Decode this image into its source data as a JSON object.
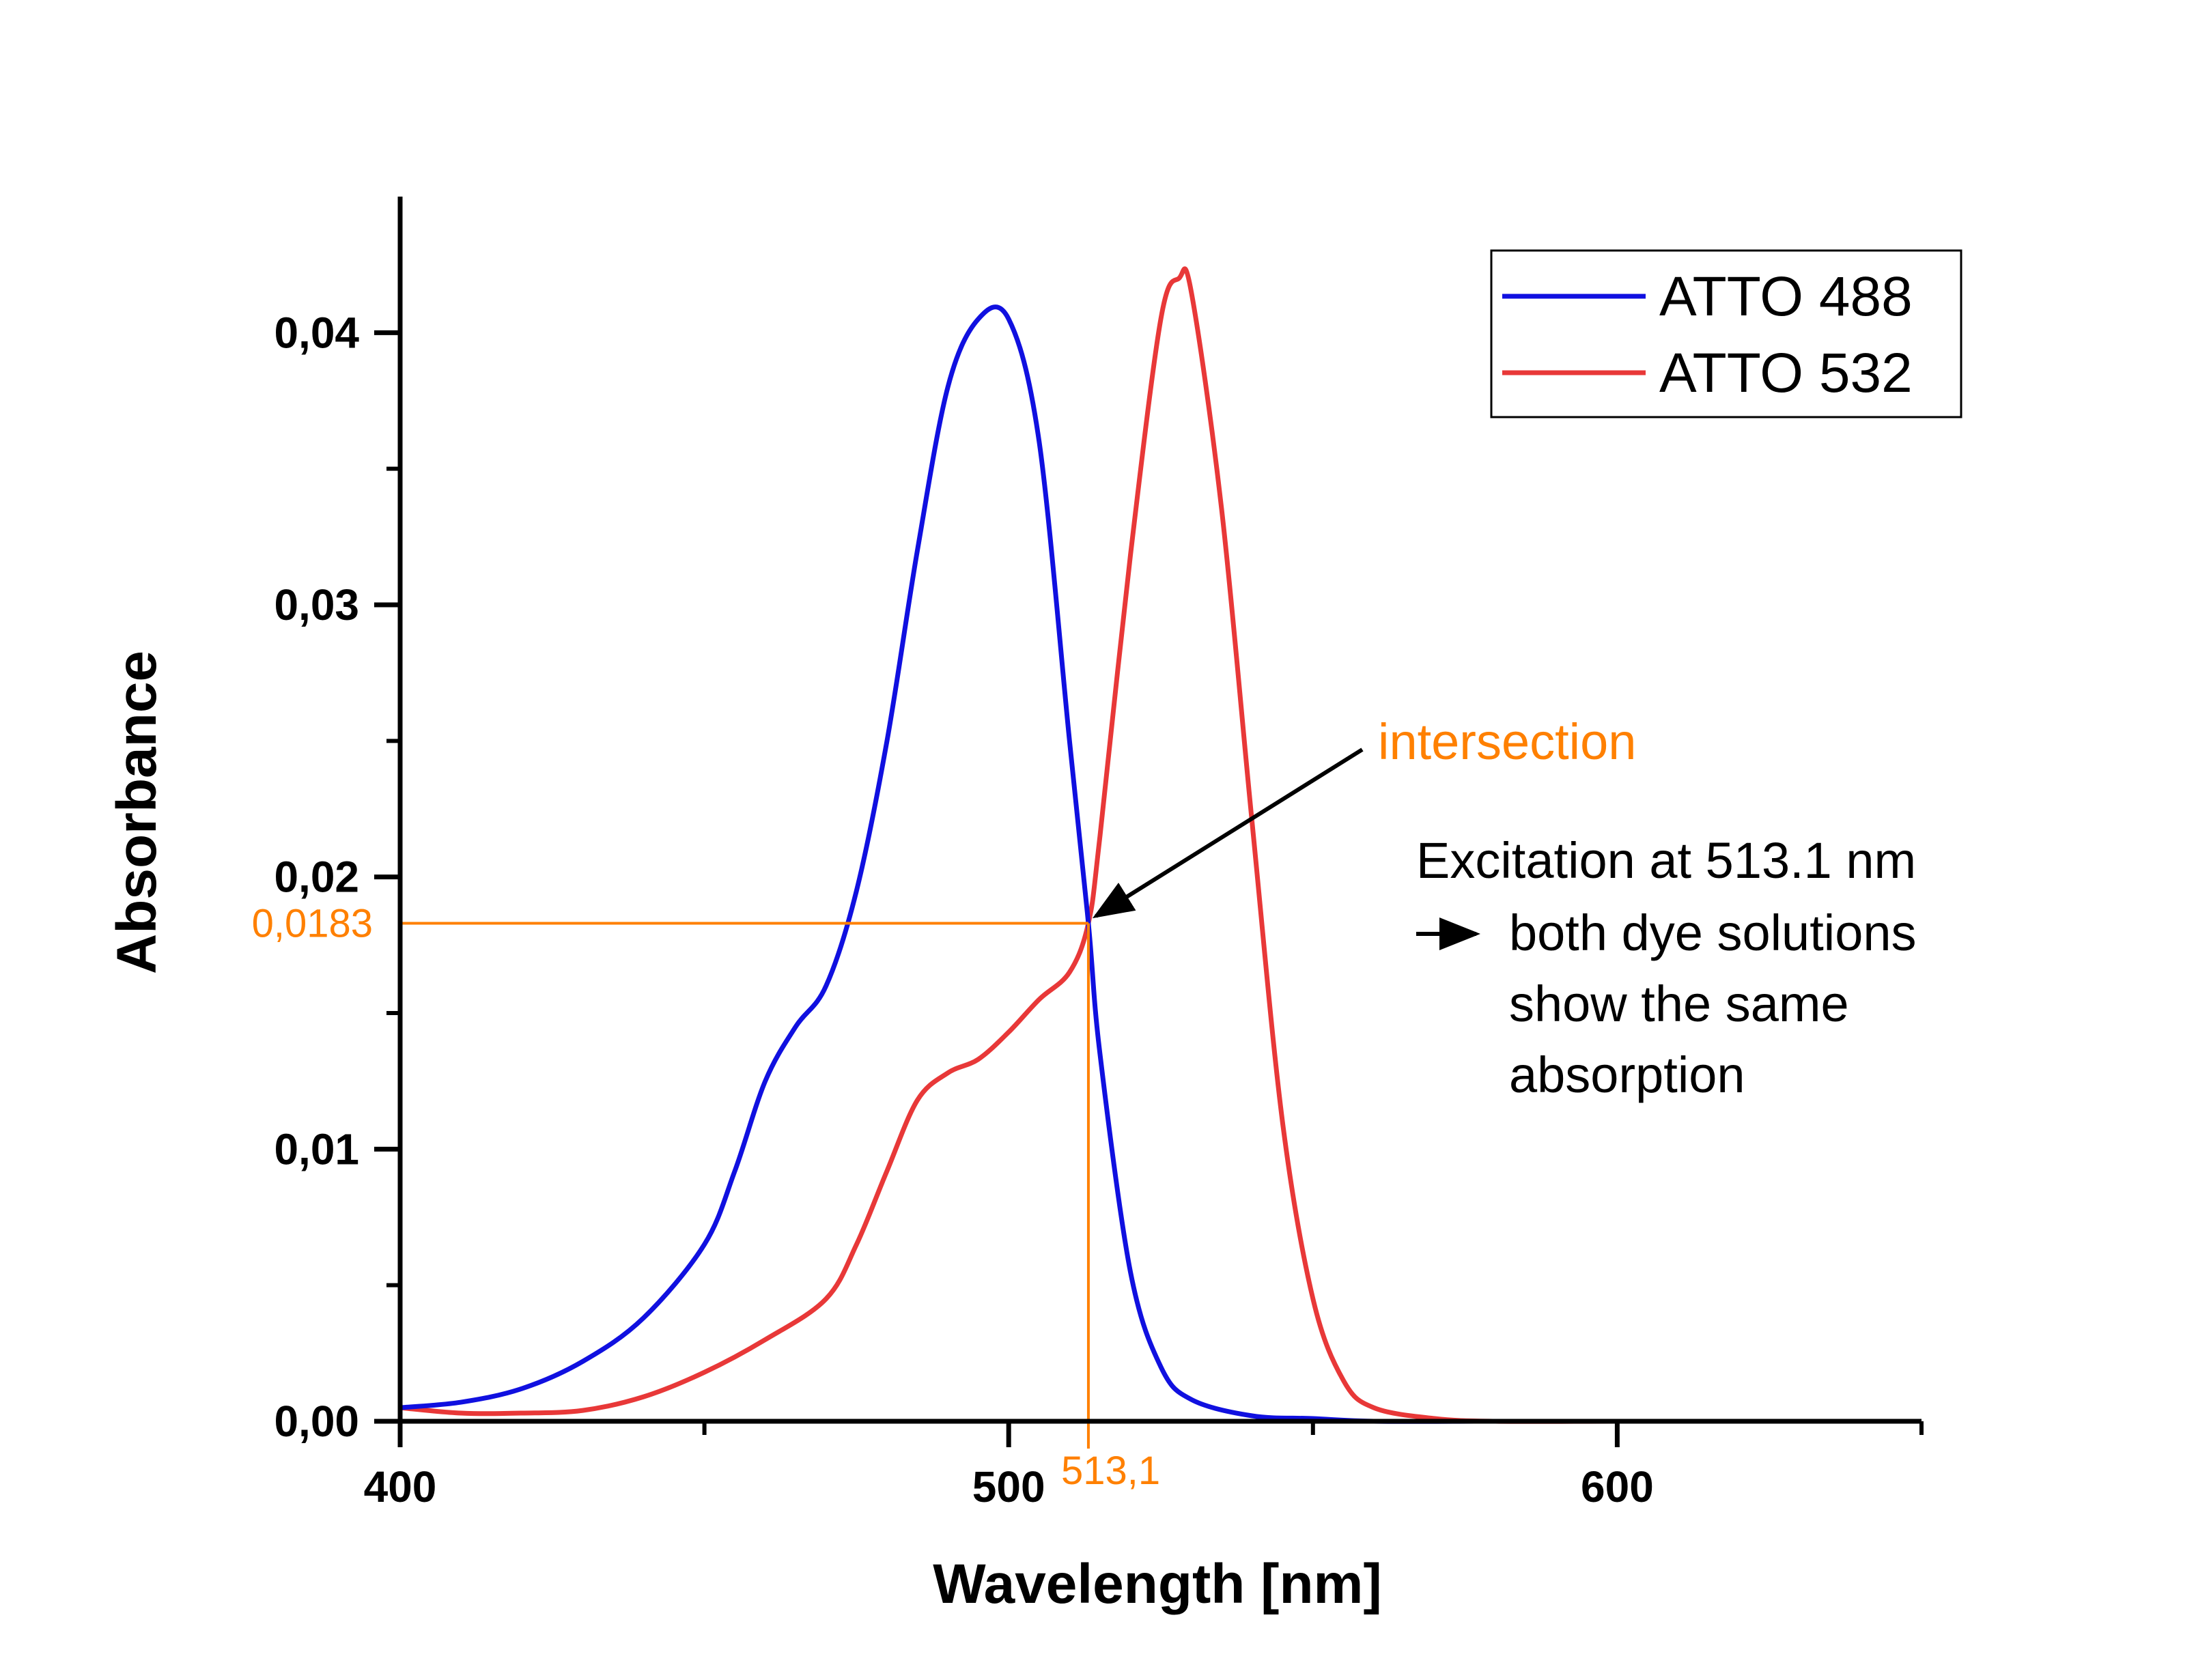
{
  "chart_data": {
    "type": "line",
    "xlabel": "Wavelength [nm]",
    "ylabel": "Absorbance",
    "xlim": [
      400,
      650
    ],
    "ylim": [
      0,
      0.045
    ],
    "x_ticks": [
      400,
      500,
      600
    ],
    "x_tick_labels": [
      "400",
      "500",
      "600"
    ],
    "y_ticks": [
      0,
      0.01,
      0.02,
      0.03,
      0.04
    ],
    "y_tick_labels": [
      "0,00",
      "0,01",
      "0,02",
      "0,03",
      "0,04"
    ],
    "grid": false,
    "legend_position": "top-right",
    "series": [
      {
        "name": "ATTO 488",
        "color": "#1010e0",
        "x": [
          400,
          410,
          420,
          430,
          440,
          450,
          455,
          460,
          465,
          470,
          475,
          480,
          485,
          490,
          495,
          500,
          505,
          510,
          513.1,
          515,
          520,
          525,
          530,
          540,
          550,
          560,
          580,
          600,
          620
        ],
        "y": [
          0.0005,
          0.0007,
          0.0012,
          0.0022,
          0.0038,
          0.0065,
          0.0092,
          0.0125,
          0.0145,
          0.016,
          0.0195,
          0.025,
          0.032,
          0.038,
          0.0405,
          0.0405,
          0.036,
          0.025,
          0.0183,
          0.0135,
          0.0055,
          0.002,
          0.0008,
          0.0002,
          0.0001,
          0.0,
          0.0,
          0.0,
          0.0
        ]
      },
      {
        "name": "ATTO 532",
        "color": "#e83838",
        "x": [
          400,
          410,
          420,
          430,
          440,
          450,
          460,
          470,
          475,
          480,
          485,
          490,
          495,
          500,
          505,
          510,
          513.1,
          515,
          520,
          525,
          528,
          530,
          535,
          540,
          545,
          550,
          555,
          560,
          570,
          580,
          600,
          620,
          627
        ],
        "y": [
          0.0005,
          0.0003,
          0.0003,
          0.0004,
          0.0009,
          0.0018,
          0.003,
          0.0045,
          0.0065,
          0.0092,
          0.0118,
          0.0128,
          0.0133,
          0.0143,
          0.0155,
          0.0165,
          0.0183,
          0.0215,
          0.0318,
          0.0405,
          0.042,
          0.0415,
          0.0335,
          0.022,
          0.011,
          0.0045,
          0.0015,
          0.0005,
          0.0001,
          0.0,
          0.0,
          0.0,
          0.0
        ]
      }
    ],
    "annotations": {
      "intersection_x": 513.1,
      "intersection_y": 0.0183,
      "intersection_x_label": "513,1",
      "intersection_y_label": "0,0183",
      "intersection_label": "intersection",
      "note_lines": [
        "Excitation at 513.1 nm",
        "both dye solutions",
        "show the same",
        "absorption"
      ],
      "guide_color": "#ff8000"
    }
  }
}
